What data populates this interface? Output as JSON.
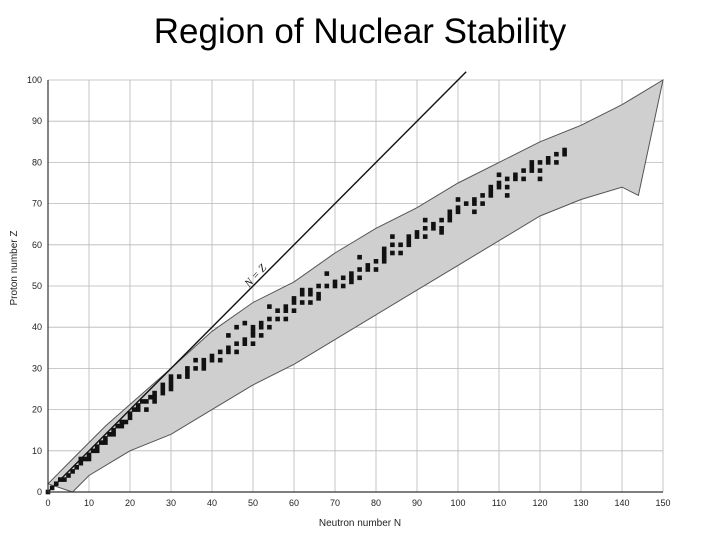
{
  "slide": {
    "title": "Region of Nuclear Stability"
  },
  "chart_data": {
    "type": "scatter",
    "title": "",
    "xlabel": "Neutron number N",
    "ylabel": "Proton number Z",
    "xlim": [
      0,
      150
    ],
    "ylim": [
      0,
      100
    ],
    "xticks": [
      0,
      10,
      20,
      30,
      40,
      50,
      60,
      70,
      80,
      90,
      100,
      110,
      120,
      130,
      140,
      150
    ],
    "yticks": [
      0,
      10,
      20,
      30,
      40,
      50,
      60,
      70,
      80,
      90,
      100
    ],
    "grid": true,
    "reference_line": {
      "label": "N = Z",
      "from": [
        0,
        0
      ],
      "to": [
        102,
        102
      ]
    },
    "known_nuclide_region": {
      "upper_edge": [
        [
          0,
          2
        ],
        [
          6,
          8
        ],
        [
          14,
          16
        ],
        [
          22,
          23
        ],
        [
          30,
          30
        ],
        [
          40,
          39
        ],
        [
          50,
          46
        ],
        [
          60,
          51
        ],
        [
          70,
          58
        ],
        [
          80,
          64
        ],
        [
          90,
          69
        ],
        [
          100,
          75
        ],
        [
          110,
          80
        ],
        [
          120,
          85
        ],
        [
          130,
          89
        ],
        [
          140,
          94
        ],
        [
          150,
          100
        ]
      ],
      "lower_edge": [
        [
          6,
          0
        ],
        [
          10,
          4
        ],
        [
          20,
          10
        ],
        [
          30,
          14
        ],
        [
          40,
          20
        ],
        [
          50,
          26
        ],
        [
          60,
          31
        ],
        [
          70,
          37
        ],
        [
          80,
          43
        ],
        [
          90,
          49
        ],
        [
          100,
          55
        ],
        [
          110,
          61
        ],
        [
          120,
          67
        ],
        [
          130,
          71
        ],
        [
          140,
          74
        ],
        [
          144,
          72
        ]
      ]
    },
    "stable_nuclides": [
      [
        0,
        0
      ],
      [
        1,
        1
      ],
      [
        2,
        2
      ],
      [
        3,
        3
      ],
      [
        4,
        3
      ],
      [
        5,
        4
      ],
      [
        6,
        5
      ],
      [
        7,
        6
      ],
      [
        8,
        7
      ],
      [
        8,
        8
      ],
      [
        9,
        8
      ],
      [
        10,
        8
      ],
      [
        10,
        9
      ],
      [
        11,
        10
      ],
      [
        12,
        10
      ],
      [
        12,
        11
      ],
      [
        13,
        12
      ],
      [
        14,
        12
      ],
      [
        14,
        13
      ],
      [
        15,
        14
      ],
      [
        16,
        14
      ],
      [
        16,
        15
      ],
      [
        17,
        16
      ],
      [
        18,
        16
      ],
      [
        18,
        17
      ],
      [
        19,
        17
      ],
      [
        20,
        18
      ],
      [
        20,
        19
      ],
      [
        21,
        20
      ],
      [
        22,
        20
      ],
      [
        22,
        21
      ],
      [
        24,
        20
      ],
      [
        23,
        22
      ],
      [
        24,
        22
      ],
      [
        26,
        22
      ],
      [
        25,
        23
      ],
      [
        26,
        24
      ],
      [
        28,
        24
      ],
      [
        28,
        25
      ],
      [
        28,
        26
      ],
      [
        30,
        26
      ],
      [
        30,
        27
      ],
      [
        30,
        28
      ],
      [
        32,
        28
      ],
      [
        34,
        28
      ],
      [
        34,
        29
      ],
      [
        34,
        30
      ],
      [
        36,
        30
      ],
      [
        38,
        30
      ],
      [
        38,
        31
      ],
      [
        38,
        32
      ],
      [
        40,
        32
      ],
      [
        42,
        32
      ],
      [
        40,
        33
      ],
      [
        42,
        34
      ],
      [
        44,
        34
      ],
      [
        46,
        34
      ],
      [
        44,
        35
      ],
      [
        46,
        36
      ],
      [
        48,
        36
      ],
      [
        50,
        36
      ],
      [
        48,
        37
      ],
      [
        50,
        38
      ],
      [
        52,
        38
      ],
      [
        50,
        39
      ],
      [
        50,
        40
      ],
      [
        52,
        40
      ],
      [
        54,
        40
      ],
      [
        52,
        41
      ],
      [
        54,
        42
      ],
      [
        56,
        42
      ],
      [
        58,
        42
      ],
      [
        56,
        44
      ],
      [
        58,
        44
      ],
      [
        60,
        44
      ],
      [
        58,
        45
      ],
      [
        60,
        46
      ],
      [
        62,
        46
      ],
      [
        64,
        46
      ],
      [
        60,
        47
      ],
      [
        62,
        48
      ],
      [
        64,
        48
      ],
      [
        66,
        48
      ],
      [
        64,
        49
      ],
      [
        66,
        50
      ],
      [
        68,
        50
      ],
      [
        70,
        50
      ],
      [
        72,
        50
      ],
      [
        70,
        51
      ],
      [
        72,
        52
      ],
      [
        74,
        52
      ],
      [
        76,
        52
      ],
      [
        74,
        53
      ],
      [
        76,
        54
      ],
      [
        78,
        54
      ],
      [
        80,
        54
      ],
      [
        78,
        55
      ],
      [
        80,
        56
      ],
      [
        82,
        56
      ],
      [
        82,
        57
      ],
      [
        82,
        58
      ],
      [
        84,
        58
      ],
      [
        82,
        59
      ],
      [
        84,
        60
      ],
      [
        86,
        60
      ],
      [
        88,
        60
      ],
      [
        88,
        61
      ],
      [
        88,
        62
      ],
      [
        90,
        62
      ],
      [
        92,
        62
      ],
      [
        90,
        63
      ],
      [
        92,
        64
      ],
      [
        94,
        64
      ],
      [
        96,
        64
      ],
      [
        94,
        65
      ],
      [
        96,
        66
      ],
      [
        98,
        66
      ],
      [
        98,
        67
      ],
      [
        98,
        68
      ],
      [
        100,
        68
      ],
      [
        100,
        69
      ],
      [
        102,
        70
      ],
      [
        104,
        70
      ],
      [
        106,
        70
      ],
      [
        104,
        71
      ],
      [
        106,
        72
      ],
      [
        108,
        72
      ],
      [
        108,
        73
      ],
      [
        108,
        74
      ],
      [
        110,
        74
      ],
      [
        112,
        74
      ],
      [
        110,
        75
      ],
      [
        112,
        76
      ],
      [
        114,
        76
      ],
      [
        116,
        76
      ],
      [
        114,
        77
      ],
      [
        116,
        78
      ],
      [
        118,
        78
      ],
      [
        120,
        78
      ],
      [
        118,
        79
      ],
      [
        120,
        80
      ],
      [
        122,
        80
      ],
      [
        124,
        80
      ],
      [
        122,
        81
      ],
      [
        124,
        82
      ],
      [
        126,
        82
      ],
      [
        126,
        83
      ],
      [
        46,
        40
      ],
      [
        48,
        41
      ],
      [
        54,
        45
      ],
      [
        62,
        49
      ],
      [
        68,
        53
      ],
      [
        76,
        57
      ],
      [
        84,
        62
      ],
      [
        92,
        66
      ],
      [
        100,
        71
      ],
      [
        110,
        77
      ],
      [
        118,
        80
      ],
      [
        44,
        38
      ],
      [
        36,
        32
      ],
      [
        26,
        23
      ],
      [
        30,
        25
      ],
      [
        66,
        47
      ],
      [
        74,
        51
      ],
      [
        86,
        58
      ],
      [
        96,
        63
      ],
      [
        104,
        68
      ],
      [
        112,
        72
      ],
      [
        120,
        76
      ]
    ]
  }
}
